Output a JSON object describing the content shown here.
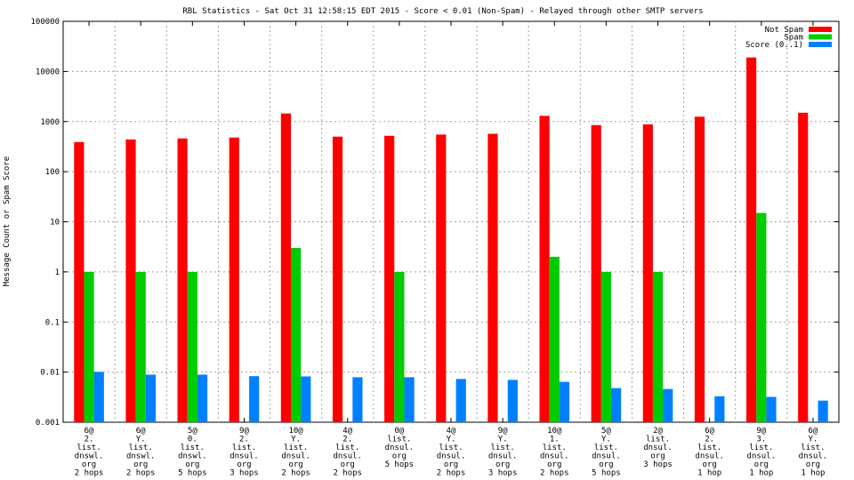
{
  "chart_data": {
    "type": "bar",
    "title": "RBL Statistics - Sat Oct 31 12:58:15 EDT 2015 - Score < 0.01 (Non-Spam) - Relayed through other SMTP servers",
    "xlabel": "",
    "ylabel": "Message Count or Spam Score",
    "yscale": "log",
    "ylim": [
      0.001,
      100000
    ],
    "yticks": [
      "0.001",
      "0.01",
      "0.1",
      "1",
      "10",
      "100",
      "1000",
      "10000",
      "100000"
    ],
    "grid": true,
    "legend_position": "top-right",
    "categories": [
      [
        "6@",
        "2.",
        "list.",
        "dnswl.",
        "org",
        "2 hops"
      ],
      [
        "6@",
        "Y.",
        "list.",
        "dnswl.",
        "org",
        "2 hops"
      ],
      [
        "5@",
        "0.",
        "list.",
        "dnswl.",
        "org",
        "5 hops"
      ],
      [
        "9@",
        "2.",
        "list.",
        "dnsul.",
        "org",
        "3 hops"
      ],
      [
        "10@",
        "Y.",
        "list.",
        "dnsul.",
        "org",
        "2 hops"
      ],
      [
        "4@",
        "2.",
        "list.",
        "dnsul.",
        "org",
        "2 hops"
      ],
      [
        "0@",
        "list.",
        "dnsul.",
        "org",
        "5 hops"
      ],
      [
        "4@",
        "Y.",
        "list.",
        "dnsul.",
        "org",
        "2 hops"
      ],
      [
        "9@",
        "Y.",
        "list.",
        "dnsul.",
        "org",
        "3 hops"
      ],
      [
        "10@",
        "1.",
        "list.",
        "dnsul.",
        "org",
        "2 hops"
      ],
      [
        "5@",
        "Y.",
        "list.",
        "dnsul.",
        "org",
        "5 hops"
      ],
      [
        "2@",
        "list.",
        "dnsul.",
        "org",
        "3 hops"
      ],
      [
        "6@",
        "2.",
        "list.",
        "dnsul.",
        "org",
        "1 hop"
      ],
      [
        "9@",
        "3.",
        "list.",
        "dnsul.",
        "org",
        "1 hop"
      ],
      [
        "6@",
        "Y.",
        "list.",
        "dnsul.",
        "org",
        "1 hop"
      ]
    ],
    "series": [
      {
        "name": "Not Spam",
        "color": "#ff0000",
        "values": [
          390,
          440,
          460,
          480,
          1450,
          500,
          520,
          550,
          570,
          1300,
          850,
          880,
          1250,
          19000,
          1500
        ]
      },
      {
        "name": "Spam",
        "color": "#00cc00",
        "values": [
          1,
          1,
          1,
          null,
          3,
          null,
          1,
          null,
          null,
          2,
          1,
          1,
          null,
          15,
          null
        ]
      },
      {
        "name": "Score (0..1)",
        "color": "#0080ff",
        "values": [
          0.0101,
          0.0089,
          0.0089,
          0.0083,
          0.0082,
          0.0079,
          0.0079,
          0.0073,
          0.007,
          0.0064,
          0.0048,
          0.0046,
          0.0033,
          0.0032,
          0.0027
        ]
      }
    ]
  }
}
